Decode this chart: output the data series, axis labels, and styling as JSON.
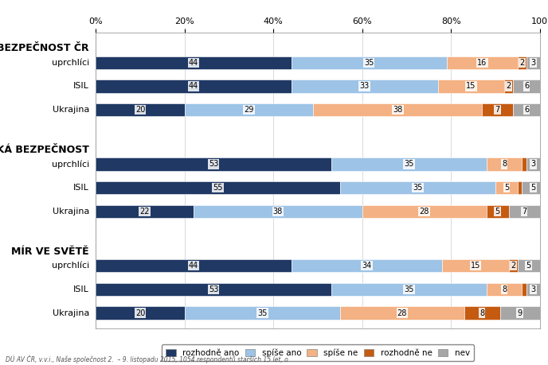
{
  "groups": [
    {
      "label": "BEZPEČNOST ČR",
      "rows": [
        {
          "name": "uprchlíci",
          "values": [
            44,
            35,
            16,
            2,
            3
          ]
        },
        {
          "name": "ISIL",
          "values": [
            44,
            33,
            15,
            2,
            6
          ]
        },
        {
          "name": "Ukrajina",
          "values": [
            20,
            29,
            38,
            7,
            6
          ]
        }
      ]
    },
    {
      "label": "OPSKÁ BEZPEČNOST",
      "rows": [
        {
          "name": "uprchlíci",
          "values": [
            53,
            35,
            8,
            1,
            3
          ]
        },
        {
          "name": "ISIL",
          "values": [
            55,
            35,
            5,
            1,
            5
          ]
        },
        {
          "name": "Ukrajina",
          "values": [
            22,
            38,
            28,
            5,
            7
          ]
        }
      ]
    },
    {
      "label": "MÍR VE SVĚTĚ",
      "rows": [
        {
          "name": "uprchlíci",
          "values": [
            44,
            34,
            15,
            2,
            5
          ]
        },
        {
          "name": "ISIL",
          "values": [
            53,
            35,
            8,
            1,
            3
          ]
        },
        {
          "name": "Ukrajina",
          "values": [
            20,
            35,
            28,
            8,
            9
          ]
        }
      ]
    }
  ],
  "colors": [
    "#1f3864",
    "#9dc3e6",
    "#f4b183",
    "#c55a11",
    "#a6a6a6"
  ],
  "legend_labels": [
    "rozhodně ano",
    "spíše ano",
    "spíše ne",
    "rozhodně ne",
    "nev"
  ],
  "xlim": [
    0,
    100
  ],
  "xticks": [
    0,
    20,
    40,
    60,
    80,
    100
  ],
  "xtick_labels": [
    "0%",
    "20%",
    "40%",
    "60%",
    "80%",
    "100"
  ],
  "bar_height": 0.55,
  "background_color": "#ffffff",
  "text_color": "#000000",
  "fontsize_row_label": 8,
  "fontsize_group": 9,
  "fontsize_bar": 7
}
